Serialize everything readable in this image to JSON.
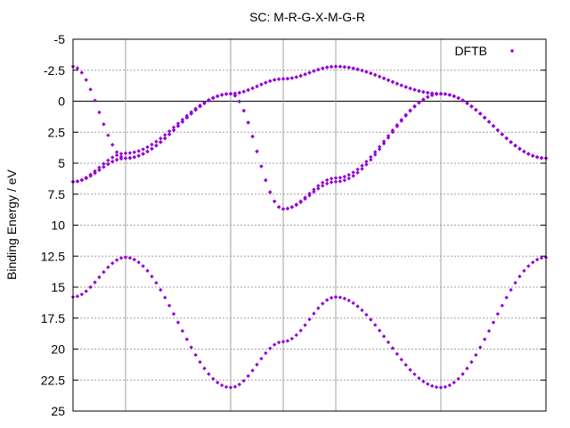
{
  "chart_data": {
    "type": "scatter",
    "title": "SC: M-R-G-X-M-G-R",
    "ylabel": "Binding Energy / eV",
    "xlabel": "",
    "ylim": [
      -5,
      25
    ],
    "y_inverted": true,
    "yticks": [
      "-5",
      "-2.5",
      "0",
      "2.5",
      "5",
      "7.5",
      "10",
      "12.5",
      "15",
      "17.5",
      "20",
      "22.5",
      "25"
    ],
    "y_tick_values": [
      -5,
      -2.5,
      0,
      2.5,
      5,
      7.5,
      10,
      12.5,
      15,
      17.5,
      20,
      22.5,
      25
    ],
    "xlim": [
      0,
      9
    ],
    "x_vertical_gridlines": [
      1,
      3,
      4,
      5,
      7
    ],
    "y_grid": true,
    "zero_line": 0,
    "legend": {
      "position": "top-right",
      "entries": [
        "DFTB"
      ]
    },
    "marker_color": "#9400d3",
    "series": [
      {
        "name": "DFTB",
        "bands": [
          {
            "x": [
              0,
              1,
              3,
              4,
              5,
              7,
              9
            ],
            "y": [
              -2.8,
              4.6,
              -0.6,
              -1.8,
              -2.8,
              -0.6,
              4.6
            ],
            "interp": "cosine",
            "samples": 12
          },
          {
            "x": [
              0,
              1,
              3,
              4,
              5,
              7,
              9
            ],
            "y": [
              6.5,
              4.6,
              -0.6,
              -1.8,
              -2.8,
              -0.6,
              4.6
            ],
            "interp": "cosine",
            "samples": 12
          },
          {
            "x": [
              0,
              1,
              3,
              4,
              5,
              7,
              9
            ],
            "y": [
              6.5,
              4.2,
              -0.6,
              8.7,
              6.5,
              -0.6,
              4.6
            ],
            "interp": "cosine",
            "samples": 12
          },
          {
            "x": [
              0,
              1,
              3,
              4,
              5,
              7,
              9
            ],
            "y": [
              6.5,
              4.6,
              -0.6,
              8.7,
              6.2,
              -0.6,
              4.6
            ],
            "interp": "cosine",
            "samples": 12
          },
          {
            "x": [
              0,
              1,
              3,
              4,
              5,
              7,
              9
            ],
            "y": [
              15.8,
              12.6,
              23.1,
              19.4,
              15.8,
              23.1,
              12.6
            ],
            "interp": "cosine",
            "samples": 12
          }
        ]
      }
    ]
  }
}
